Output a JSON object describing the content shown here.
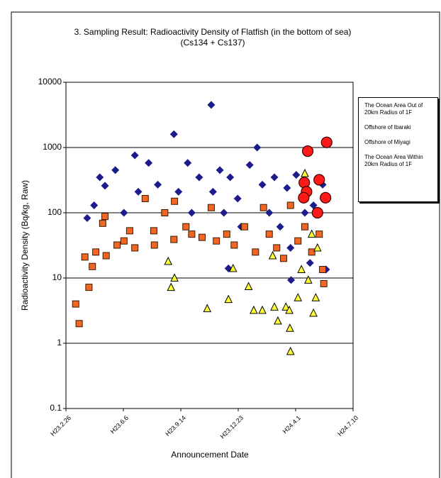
{
  "chart_data": {
    "type": "scatter",
    "title": "3. Sampling Result: Radioactivity Density of Flatfish (in the bottom of sea)",
    "subtitle": "(Cs134 + Cs137)",
    "x_label": "Announcement Date",
    "y_label": "Radioactivity Density (Bq/kg, Raw)",
    "yscale": "log",
    "grid": true,
    "legend": "right",
    "xlim": [
      0,
      500
    ],
    "xticks": [
      {
        "value": 0,
        "label": "H23.2.26"
      },
      {
        "value": 100,
        "label": "H23.6.6"
      },
      {
        "value": 200,
        "label": "H23.9.14"
      },
      {
        "value": 300,
        "label": "H23.12.23"
      },
      {
        "value": 400,
        "label": "H24.4.1"
      },
      {
        "value": 500,
        "label": "H24.7.10"
      }
    ],
    "ylim": [
      0.1,
      10000
    ],
    "yticks": [
      0.1,
      1,
      10,
      100,
      1000,
      10000
    ],
    "series": [
      {
        "name": "The Ocean Area Out of 20km Radius of 1F",
        "color": "#1c1c8c",
        "marker": "diamond",
        "x": [
          37,
          49,
          59,
          68,
          86,
          101,
          120,
          126,
          144,
          160,
          188,
          196,
          212,
          219,
          232,
          253,
          256,
          268,
          275,
          286,
          299,
          305,
          320,
          333,
          342,
          354,
          363,
          373,
          385,
          391,
          401,
          416,
          431,
          441,
          447,
          453,
          283,
          392,
          425
        ],
        "values": [
          83,
          130,
          350,
          260,
          450,
          100,
          760,
          210,
          580,
          270,
          1600,
          210,
          580,
          100,
          350,
          4500,
          210,
          450,
          100,
          350,
          165,
          61,
          540,
          1000,
          270,
          100,
          350,
          61,
          240,
          29,
          380,
          100,
          130,
          100,
          270,
          13.5,
          14,
          9.3,
          17
        ]
      },
      {
        "name": "Offshore of Ibaraki",
        "color": "#f26522",
        "marker": "square",
        "x": [
          17,
          23,
          33,
          40,
          46,
          52,
          64,
          68,
          70,
          89,
          101,
          111,
          120,
          138,
          153,
          154,
          172,
          188,
          189,
          209,
          219,
          237,
          253,
          262,
          280,
          293,
          311,
          330,
          344,
          354,
          367,
          379,
          391,
          404,
          416,
          428,
          441,
          447,
          449
        ],
        "values": [
          4,
          2,
          21,
          7.2,
          15,
          25,
          69,
          88,
          22,
          32,
          37,
          53,
          29,
          165,
          53,
          32,
          100,
          39,
          150,
          61,
          47,
          42,
          120,
          37,
          47,
          32,
          61,
          25,
          120,
          47,
          29,
          20,
          130,
          37,
          61,
          25,
          47,
          13.5,
          8.2
        ]
      },
      {
        "name": "Offshore of Miyagi",
        "color": "#ffff33",
        "marker": "triangle",
        "x": [
          178,
          183,
          189,
          246,
          283,
          291,
          318,
          327,
          342,
          360,
          363,
          369,
          383,
          389,
          390,
          391,
          404,
          410,
          416,
          422,
          428,
          431,
          435,
          438
        ],
        "values": [
          18,
          7.2,
          10,
          3.4,
          4.7,
          14,
          7.4,
          3.2,
          3.2,
          22,
          3.6,
          2.2,
          3.6,
          3.2,
          1.7,
          0.75,
          5,
          13.5,
          400,
          9.3,
          47,
          2.9,
          5,
          29
        ]
      },
      {
        "name": "The Ocean Area Within 20km Radius of 1F",
        "color": "#ff1a1a",
        "marker": "circle",
        "x": [
          421,
          415,
          419,
          414,
          438,
          441,
          452,
          454
        ],
        "values": [
          880,
          290,
          210,
          170,
          100,
          320,
          170,
          1200
        ]
      }
    ]
  }
}
